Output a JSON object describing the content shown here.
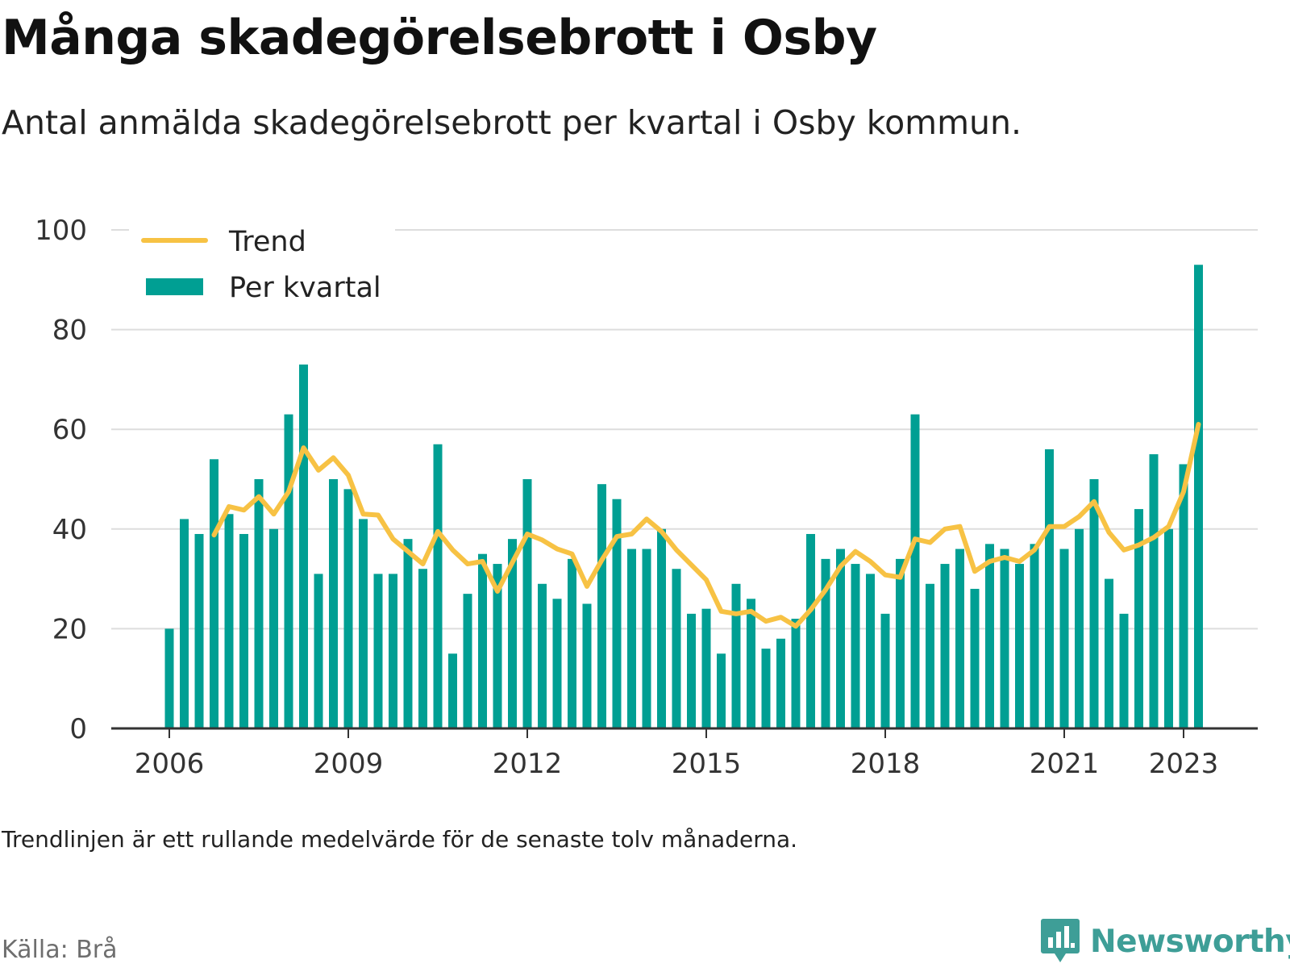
{
  "title": "Många skadegörelsebrott i Osby",
  "subtitle": "Antal anmälda skadegörelsebrott per kvartal i Osby kommun.",
  "note": "Trendlinjen är ett rullande medelvärde för de senaste tolv månaderna.",
  "source": "Källa: Brå",
  "brand": {
    "name": "Newsworthy",
    "icon": "newsworthy-logo-icon",
    "color": "#3e9e97"
  },
  "colors": {
    "bar": "#009f93",
    "trend": "#f7c244",
    "grid": "#dddddd",
    "axis": "#333333"
  },
  "chart_data": {
    "type": "bar",
    "ylim": [
      0,
      100
    ],
    "y_ticks": [
      0,
      20,
      40,
      60,
      80,
      100
    ],
    "x_tick_labels": [
      "2006",
      "2009",
      "2012",
      "2015",
      "2018",
      "2021",
      "2023"
    ],
    "x_tick_quarters": [
      0,
      12,
      24,
      36,
      48,
      60,
      68
    ],
    "grid": "horizontal",
    "legend_position": "top-left",
    "start": "2006 Q1",
    "series": [
      {
        "name": "Per kvartal",
        "type": "bar",
        "values": [
          20,
          42,
          39,
          54,
          43,
          39,
          50,
          40,
          63,
          73,
          31,
          50,
          48,
          42,
          31,
          31,
          38,
          32,
          57,
          15,
          27,
          35,
          33,
          38,
          50,
          29,
          26,
          34,
          25,
          49,
          46,
          36,
          36,
          40,
          32,
          23,
          24,
          15,
          29,
          26,
          16,
          18,
          22,
          39,
          34,
          36,
          33,
          31,
          23,
          34,
          63,
          29,
          33,
          36,
          28,
          37,
          36,
          33,
          37,
          56,
          36,
          40,
          50,
          30,
          23,
          44,
          55,
          40,
          53,
          93
        ]
      },
      {
        "name": "Trend",
        "type": "line",
        "values": [
          null,
          null,
          null,
          38.8,
          44.5,
          43.8,
          46.5,
          43.0,
          47.5,
          56.3,
          51.8,
          54.3,
          50.8,
          43.0,
          42.8,
          38.0,
          35.5,
          33.0,
          39.5,
          35.8,
          33.0,
          33.5,
          27.5,
          33.3,
          39.0,
          37.8,
          36.0,
          35.0,
          28.5,
          33.8,
          38.5,
          39.0,
          42.0,
          39.5,
          35.8,
          32.8,
          29.8,
          23.5,
          23.0,
          23.5,
          21.5,
          22.3,
          20.5,
          23.8,
          27.8,
          32.5,
          35.5,
          33.5,
          30.8,
          30.3,
          38.0,
          37.3,
          40.0,
          40.5,
          31.5,
          33.5,
          34.3,
          33.5,
          35.8,
          40.5,
          40.5,
          42.5,
          45.5,
          39.3,
          35.8,
          36.8,
          38.3,
          40.5,
          47.5,
          61.0
        ]
      }
    ]
  }
}
